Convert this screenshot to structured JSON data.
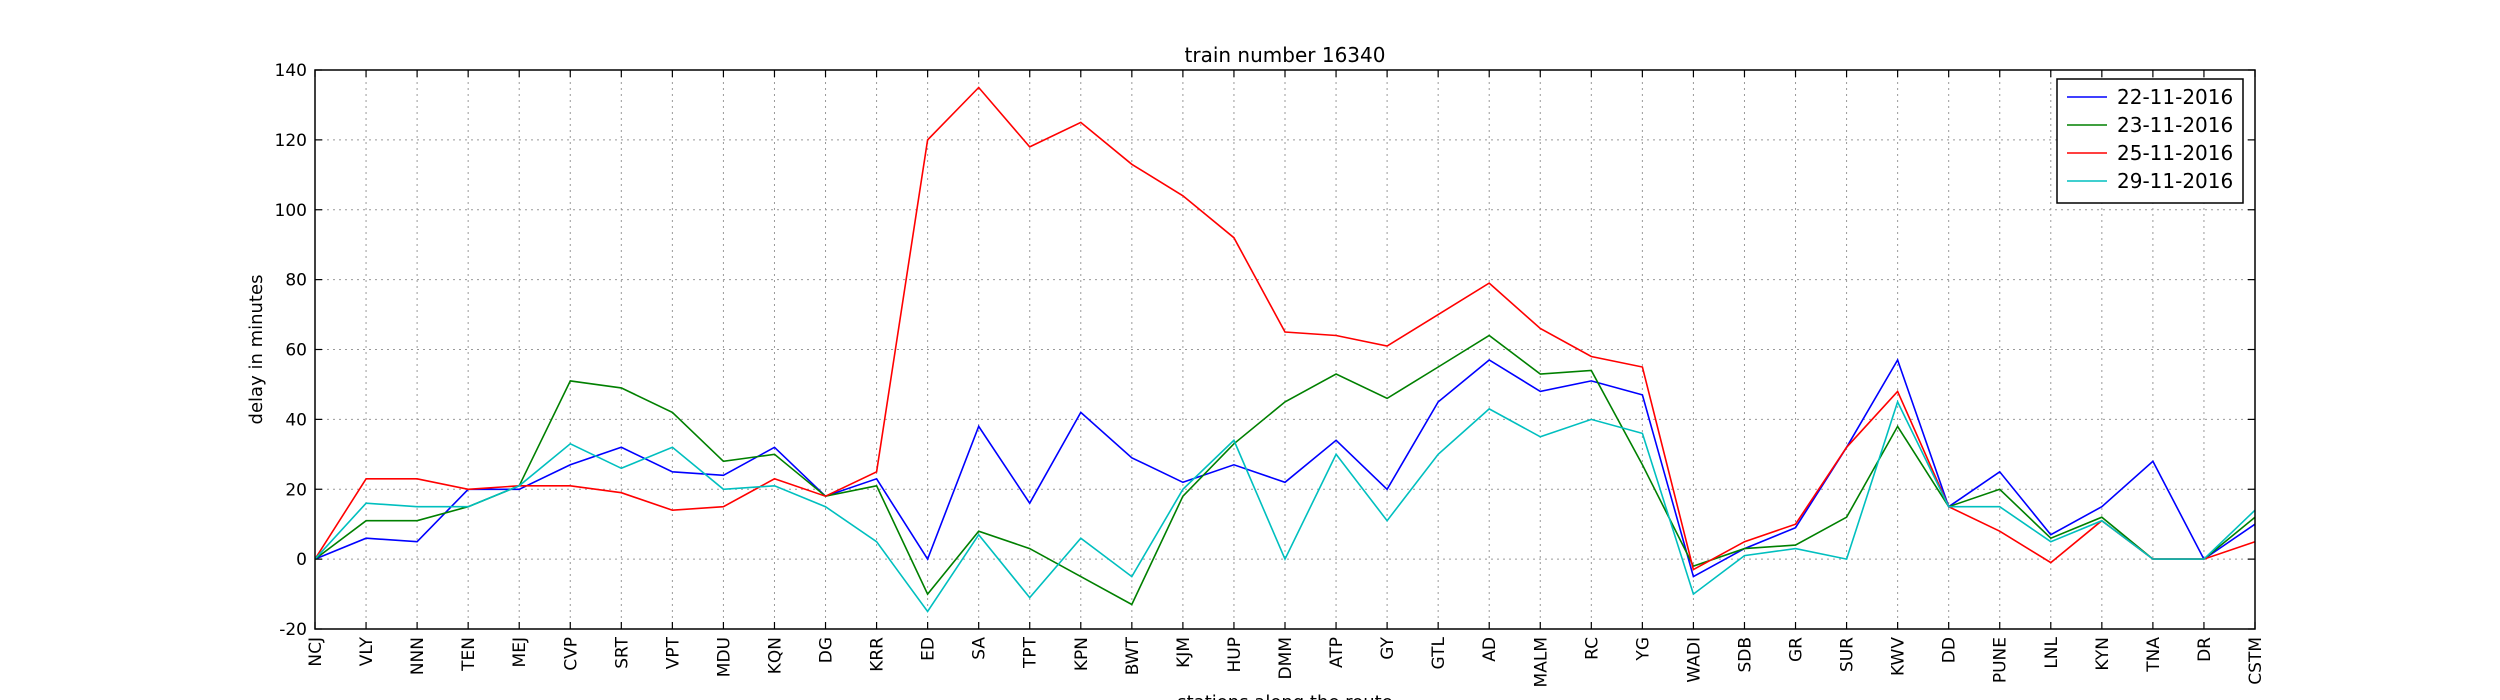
{
  "chart_data": {
    "type": "line",
    "title": "train number 16340",
    "xlabel": "stations along the route",
    "ylabel": "delay in minutes",
    "ylim": [
      -20,
      140
    ],
    "yticks": [
      -20,
      0,
      20,
      40,
      60,
      80,
      100,
      120,
      140
    ],
    "grid": true,
    "legend_position": "top-right",
    "categories": [
      "NCJ",
      "VLY",
      "NNN",
      "TEN",
      "MEJ",
      "CVP",
      "SRT",
      "VPT",
      "MDU",
      "KQN",
      "DG",
      "KRR",
      "ED",
      "SA",
      "TPT",
      "KPN",
      "BWT",
      "KJM",
      "HUP",
      "DMM",
      "ATP",
      "GY",
      "GTL",
      "AD",
      "MALM",
      "RC",
      "YG",
      "WADI",
      "SDB",
      "GR",
      "SUR",
      "KWV",
      "DD",
      "PUNE",
      "LNL",
      "KYN",
      "TNA",
      "DR",
      "CSTM"
    ],
    "series": [
      {
        "name": "22-11-2016",
        "color": "#0000ff",
        "values": [
          0,
          6,
          5,
          20,
          20,
          27,
          32,
          25,
          24,
          32,
          18,
          23,
          0,
          38,
          16,
          42,
          29,
          22,
          27,
          22,
          34,
          20,
          45,
          57,
          48,
          51,
          47,
          -5,
          3,
          9,
          32,
          57,
          15,
          25,
          7,
          15,
          28,
          0,
          10
        ]
      },
      {
        "name": "23-11-2016",
        "color": "#008000",
        "values": [
          0,
          11,
          11,
          15,
          21,
          51,
          49,
          42,
          28,
          30,
          18,
          21,
          -10,
          8,
          3,
          -5,
          -13,
          18,
          33,
          45,
          53,
          46,
          55,
          64,
          53,
          54,
          27,
          -2,
          3,
          4,
          12,
          38,
          15,
          20,
          6,
          12,
          0,
          0,
          12
        ]
      },
      {
        "name": "25-11-2016",
        "color": "#ff0000",
        "values": [
          0,
          23,
          23,
          20,
          21,
          21,
          19,
          14,
          15,
          23,
          18,
          25,
          120,
          135,
          118,
          125,
          113,
          104,
          92,
          65,
          64,
          61,
          70,
          79,
          66,
          58,
          55,
          -3,
          5,
          10,
          32,
          48,
          15,
          8,
          -1,
          11,
          0,
          0,
          5
        ]
      },
      {
        "name": "29-11-2016",
        "color": "#00bfbf",
        "values": [
          0,
          16,
          15,
          15,
          21,
          33,
          26,
          32,
          20,
          21,
          15,
          5,
          -15,
          7,
          -11,
          6,
          -5,
          20,
          34,
          0,
          30,
          11,
          30,
          43,
          35,
          40,
          36,
          -10,
          1,
          3,
          0,
          45,
          15,
          15,
          5,
          11,
          0,
          0,
          14
        ]
      }
    ]
  }
}
